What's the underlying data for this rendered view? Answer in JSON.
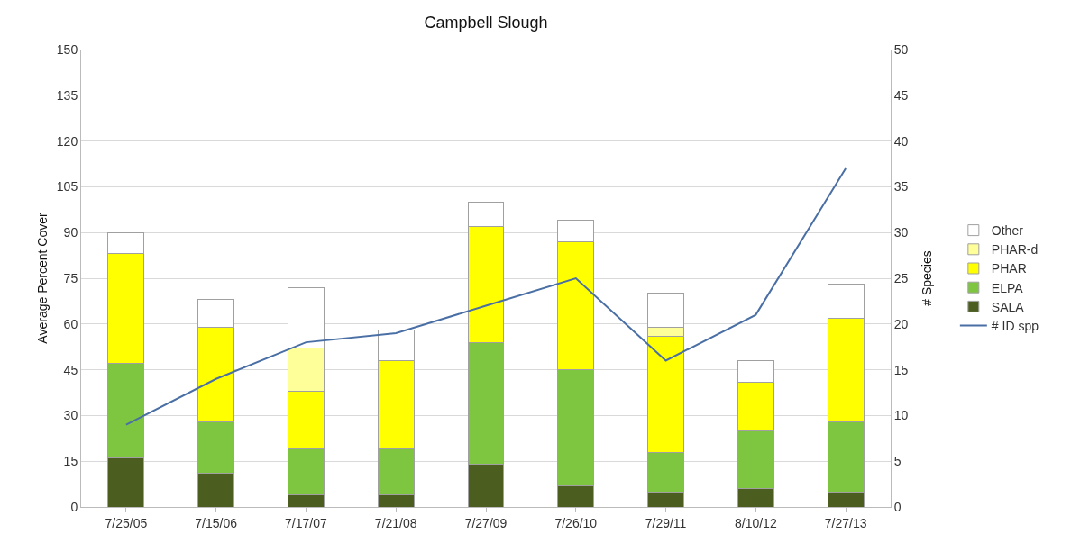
{
  "chart_data": {
    "type": "bar",
    "title": "Campbell Slough",
    "ylabel": "Average Percent Cover",
    "y2label": "# Species",
    "categories": [
      "7/25/05",
      "7/15/06",
      "7/17/07",
      "7/21/08",
      "7/27/09",
      "7/26/10",
      "7/29/11",
      "8/10/12",
      "7/27/13"
    ],
    "stacked": true,
    "series": [
      {
        "name": "SALA",
        "color": "#4b5e1f",
        "values": [
          16,
          11,
          4,
          4,
          14,
          7,
          5,
          6,
          5
        ]
      },
      {
        "name": "ELPA",
        "color": "#7ec63f",
        "values": [
          31,
          17,
          15,
          15,
          40,
          38,
          13,
          19,
          23
        ]
      },
      {
        "name": "PHAR",
        "color": "#ffff00",
        "values": [
          36,
          31,
          19,
          29,
          38,
          42,
          38,
          16,
          34
        ]
      },
      {
        "name": "PHAR-d",
        "color": "#ffff99",
        "values": [
          0,
          0,
          14,
          0,
          0,
          0,
          3,
          0,
          0
        ]
      },
      {
        "name": "Other",
        "color": "#ffffff",
        "values": [
          7,
          9,
          20,
          10,
          8,
          7,
          11,
          7,
          11
        ]
      },
      {
        "name": "# ID spp",
        "type": "line",
        "axis": "y2",
        "color": "#4a6fa5",
        "values": [
          9,
          14,
          18,
          19,
          22,
          25,
          16,
          21,
          37
        ]
      }
    ],
    "ylim": [
      0,
      150
    ],
    "yticks": [
      0,
      15,
      30,
      45,
      60,
      75,
      90,
      105,
      120,
      135,
      150
    ],
    "y2lim": [
      0,
      50
    ],
    "y2ticks": [
      0,
      5,
      10,
      15,
      20,
      25,
      30,
      35,
      40,
      45,
      50
    ],
    "grid": "y",
    "legend": "right",
    "marker": "none",
    "line_style": "solid"
  }
}
